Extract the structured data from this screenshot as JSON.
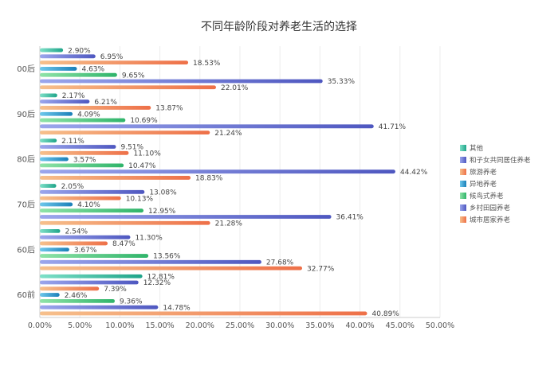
{
  "chart_data": {
    "type": "bar",
    "orientation": "horizontal",
    "title": "不同年龄阶段对养老生活的选择",
    "xlabel": "",
    "ylabel": "",
    "xlim": [
      0,
      50
    ],
    "x_ticks": [
      "0.00%",
      "5.00%",
      "10.00%",
      "15.00%",
      "20.00%",
      "25.00%",
      "30.00%",
      "35.00%",
      "40.00%",
      "45.00%",
      "50.00%"
    ],
    "grid": true,
    "legend_position": "right",
    "categories": [
      "00后",
      "90后",
      "80后",
      "70后",
      "60后",
      "60前"
    ],
    "series": [
      {
        "name": "其他",
        "color": "#2bb59a",
        "values": [
          2.9,
          2.17,
          2.11,
          2.05,
          2.54,
          12.81
        ]
      },
      {
        "name": "和子女共同居住养老",
        "color": "#5a63c8",
        "values": [
          6.95,
          6.21,
          9.51,
          13.08,
          11.3,
          12.32
        ]
      },
      {
        "name": "旅游养老",
        "color": "#f08a5d",
        "values": [
          18.53,
          13.87,
          11.1,
          10.13,
          8.47,
          7.39
        ]
      },
      {
        "name": "异地养老",
        "color": "#1f8fc4",
        "values": [
          4.63,
          4.09,
          3.57,
          4.1,
          3.67,
          2.46
        ]
      },
      {
        "name": "候鸟式养老",
        "color": "#3cbf7a",
        "values": [
          9.65,
          10.69,
          10.47,
          12.95,
          13.56,
          9.36
        ]
      },
      {
        "name": "乡村田园养老",
        "color": "#5a63c8",
        "values": [
          35.33,
          41.71,
          44.42,
          36.41,
          27.68,
          14.78
        ]
      },
      {
        "name": "城市居家养老",
        "color": "#f08a5d",
        "values": [
          22.01,
          21.24,
          18.83,
          21.28,
          32.77,
          40.89
        ]
      }
    ],
    "data_labels": [
      [
        "2.90%",
        "2.17%",
        "2.11%",
        "2.05%",
        "2.54%",
        "12.81%"
      ],
      [
        "6.95%",
        "6.21%",
        "9.51%",
        "13.08%",
        "11.30%",
        "12.32%"
      ],
      [
        "18.53%",
        "13.87%",
        "11.10%",
        "10.13%",
        "8.47%",
        "7.39%"
      ],
      [
        "4.63%",
        "4.09%",
        "3.57%",
        "4.10%",
        "3.67%",
        "2.46%"
      ],
      [
        "9.65%",
        "10.69%",
        "10.47%",
        "12.95%",
        "13.56%",
        "9.36%"
      ],
      [
        "35.33%",
        "41.71%",
        "44.42%",
        "36.41%",
        "27.68%",
        "14.78%"
      ],
      [
        "22.01%",
        "21.24%",
        "18.83%",
        "21.28%",
        "32.77%",
        "40.89%"
      ]
    ]
  }
}
